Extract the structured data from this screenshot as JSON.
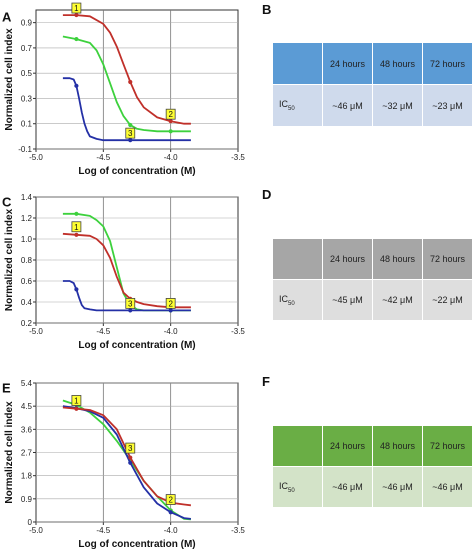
{
  "chart_data": [
    {
      "panel": "A",
      "type": "line",
      "xlabel": "Log of concentration (M)",
      "ylabel": "Normalized cell index",
      "xlim": [
        -5.0,
        -3.5
      ],
      "ylim": [
        -0.1,
        1.0
      ],
      "xticks": [
        "-5.0",
        "-4.5",
        "-4.0",
        "-3.5"
      ],
      "yticks": [
        "-0.1",
        "0.1",
        "0.3",
        "0.5",
        "0.7",
        "0.9"
      ],
      "grid": "vertical",
      "series": [
        {
          "color": "#c0302a",
          "x": [
            -4.8,
            -4.7,
            -4.6,
            -4.5,
            -4.45,
            -4.4,
            -4.35,
            -4.3,
            -4.25,
            -4.2,
            -4.1,
            -4.0,
            -3.9,
            -3.85
          ],
          "y": [
            0.96,
            0.96,
            0.95,
            0.89,
            0.82,
            0.71,
            0.57,
            0.43,
            0.31,
            0.23,
            0.15,
            0.12,
            0.1,
            0.1
          ]
        },
        {
          "color": "#3dd13d",
          "x": [
            -4.8,
            -4.7,
            -4.6,
            -4.55,
            -4.5,
            -4.45,
            -4.4,
            -4.35,
            -4.3,
            -4.25,
            -4.2,
            -4.1,
            -4.0,
            -3.9,
            -3.85
          ],
          "y": [
            0.79,
            0.77,
            0.74,
            0.68,
            0.57,
            0.42,
            0.27,
            0.16,
            0.09,
            0.06,
            0.05,
            0.04,
            0.04,
            0.04,
            0.04
          ]
        },
        {
          "color": "#2430a6",
          "x": [
            -4.8,
            -4.75,
            -4.72,
            -4.7,
            -4.68,
            -4.66,
            -4.64,
            -4.62,
            -4.6,
            -4.55,
            -4.5,
            -4.4,
            -4.3,
            -4.1,
            -3.9,
            -3.85
          ],
          "y": [
            0.46,
            0.46,
            0.45,
            0.4,
            0.3,
            0.19,
            0.1,
            0.04,
            0.0,
            -0.02,
            -0.03,
            -0.03,
            -0.03,
            -0.03,
            -0.03,
            -0.03
          ]
        }
      ],
      "markers": [
        {
          "label": "1",
          "x": -4.7,
          "y": 0.96
        },
        {
          "label": "2",
          "x": -4.0,
          "y": 0.12
        },
        {
          "label": "3",
          "x": -4.3,
          "y": -0.03
        }
      ]
    },
    {
      "panel": "C",
      "type": "line",
      "xlabel": "Log of concentration (M)",
      "ylabel": "Normalized cell index",
      "xlim": [
        -5.0,
        -3.5
      ],
      "ylim": [
        0.2,
        1.4
      ],
      "xticks": [
        "-5.0",
        "-4.5",
        "-4.0",
        "-3.5"
      ],
      "yticks": [
        "0.2",
        "0.4",
        "0.6",
        "0.8",
        "1.0",
        "1.2",
        "1.4"
      ],
      "grid": "vertical",
      "series": [
        {
          "color": "#3dd13d",
          "x": [
            -4.8,
            -4.7,
            -4.6,
            -4.55,
            -4.5,
            -4.45,
            -4.4,
            -4.35,
            -4.3,
            -4.25,
            -4.2,
            -4.1,
            -4.0,
            -3.9,
            -3.85
          ],
          "y": [
            1.24,
            1.24,
            1.22,
            1.18,
            1.12,
            0.98,
            0.73,
            0.48,
            0.37,
            0.33,
            0.32,
            0.32,
            0.32,
            0.32,
            0.32
          ]
        },
        {
          "color": "#c0302a",
          "x": [
            -4.8,
            -4.7,
            -4.6,
            -4.55,
            -4.5,
            -4.45,
            -4.4,
            -4.35,
            -4.3,
            -4.25,
            -4.2,
            -4.1,
            -4.0,
            -3.9,
            -3.85
          ],
          "y": [
            1.05,
            1.04,
            1.03,
            1.0,
            0.94,
            0.82,
            0.64,
            0.49,
            0.43,
            0.4,
            0.38,
            0.36,
            0.35,
            0.35,
            0.35
          ]
        },
        {
          "color": "#2430a6",
          "x": [
            -4.8,
            -4.75,
            -4.72,
            -4.7,
            -4.68,
            -4.66,
            -4.64,
            -4.6,
            -4.55,
            -4.5,
            -4.3,
            -4.0,
            -3.85
          ],
          "y": [
            0.6,
            0.6,
            0.58,
            0.52,
            0.44,
            0.37,
            0.34,
            0.33,
            0.32,
            0.32,
            0.32,
            0.32,
            0.32
          ]
        }
      ],
      "markers": [
        {
          "label": "1",
          "x": -4.7,
          "y": 1.05
        },
        {
          "label": "2",
          "x": -4.0,
          "y": 0.32
        },
        {
          "label": "3",
          "x": -4.3,
          "y": 0.32
        }
      ]
    },
    {
      "panel": "E",
      "type": "line",
      "xlabel": "Log of concentration (M)",
      "ylabel": "Normalized cell index",
      "xlim": [
        -5.0,
        -3.5
      ],
      "ylim": [
        0,
        5.4
      ],
      "xticks": [
        "-5.0",
        "-4.5",
        "-4.0",
        "-3.5"
      ],
      "yticks": [
        "0",
        "0.9",
        "1.8",
        "2.7",
        "3.6",
        "4.5",
        "5.4"
      ],
      "grid": "vertical",
      "series": [
        {
          "color": "#3dd13d",
          "x": [
            -4.8,
            -4.7,
            -4.6,
            -4.5,
            -4.4,
            -4.3,
            -4.2,
            -4.1,
            -4.0,
            -3.9,
            -3.85
          ],
          "y": [
            4.72,
            4.55,
            4.25,
            3.8,
            3.15,
            2.4,
            1.6,
            1.0,
            0.45,
            0.12,
            0.1
          ]
        },
        {
          "color": "#2430a6",
          "x": [
            -4.8,
            -4.7,
            -4.6,
            -4.5,
            -4.4,
            -4.3,
            -4.2,
            -4.1,
            -4.0,
            -3.9,
            -3.85
          ],
          "y": [
            4.5,
            4.42,
            4.3,
            4.05,
            3.4,
            2.3,
            1.35,
            0.72,
            0.38,
            0.15,
            0.12
          ]
        },
        {
          "color": "#c0302a",
          "x": [
            -4.8,
            -4.7,
            -4.6,
            -4.5,
            -4.4,
            -4.3,
            -4.2,
            -4.1,
            -4.0,
            -3.9,
            -3.85
          ],
          "y": [
            4.45,
            4.4,
            4.35,
            4.15,
            3.6,
            2.5,
            1.6,
            1.0,
            0.75,
            0.68,
            0.65
          ]
        }
      ],
      "markers": [
        {
          "label": "1",
          "x": -4.7,
          "y": 4.45
        },
        {
          "label": "2",
          "x": -4.0,
          "y": 0.6
        },
        {
          "label": "3",
          "x": -4.3,
          "y": 2.6
        }
      ]
    }
  ],
  "panels": {
    "a_letter": "A",
    "b_letter": "B",
    "c_letter": "C",
    "d_letter": "D",
    "e_letter": "E",
    "f_letter": "F"
  },
  "tables": {
    "b": {
      "header_color": "#5b9bd5",
      "row_color": "#cfdaec",
      "headers": [
        "24 hours",
        "48 hours",
        "72 hours"
      ],
      "row_label": "IC",
      "row_label_sub": "50",
      "values": [
        "~46 μM",
        "~32 μM",
        "~23 μM"
      ]
    },
    "d": {
      "header_color": "#a6a6a6",
      "row_color": "#dedede",
      "headers": [
        "24 hours",
        "48 hours",
        "72 hours"
      ],
      "row_label": "IC",
      "row_label_sub": "50",
      "values": [
        "~45 μM",
        "~42 μM",
        "~22 μM"
      ]
    },
    "f": {
      "header_color": "#6aae45",
      "row_color": "#d3e3c8",
      "headers": [
        "24 hours",
        "48 hours",
        "72 hours"
      ],
      "row_label": "IC",
      "row_label_sub": "50",
      "values": [
        "~46 μM",
        "~46 μM",
        "~46 μM"
      ]
    }
  }
}
